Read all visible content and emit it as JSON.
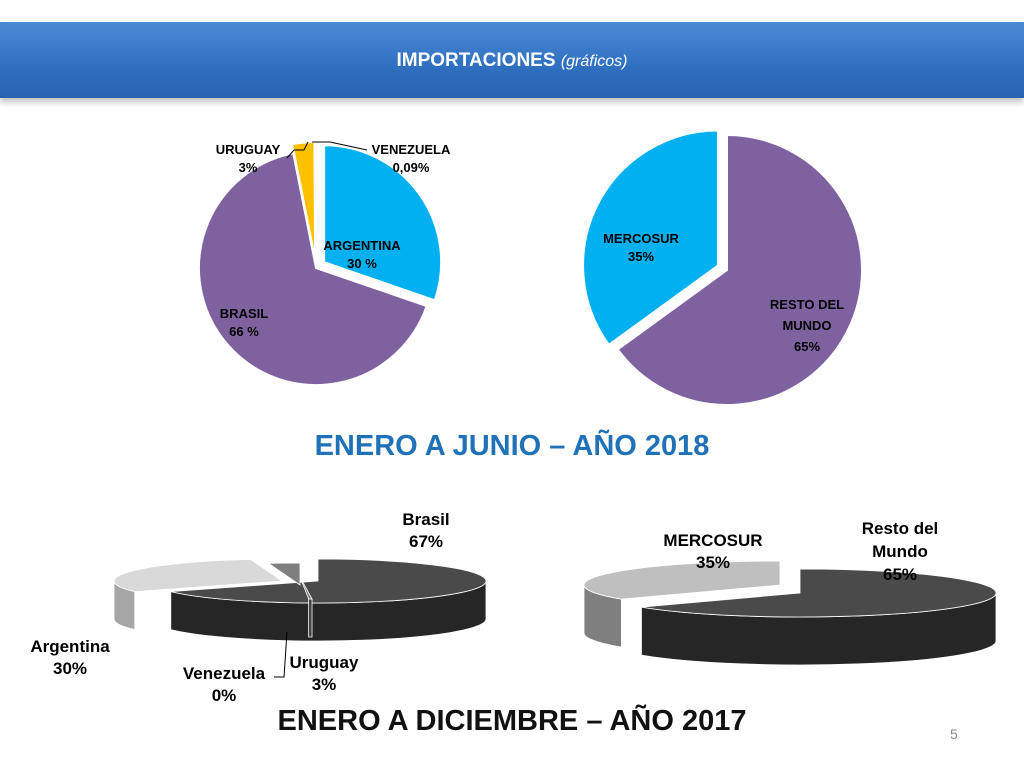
{
  "header": {
    "title": "IMPORTACIONES",
    "subtitle": "(gráficos)"
  },
  "section_2018": {
    "title": "ENERO A JUNIO – AÑO 2018"
  },
  "section_2017": {
    "title": "ENERO A DICIEMBRE – AÑO 2017"
  },
  "page_number": "5",
  "colors": {
    "purple": "#7e62a0",
    "cyan": "#00b0f0",
    "yellow": "#ffc000",
    "dark_gray": "#4a4a4a",
    "mid_gray": "#7f7f7f",
    "light_gray": "#d9d9d9"
  },
  "chart_data": [
    {
      "type": "pie",
      "title": "",
      "period": "ENERO A JUNIO – AÑO 2018",
      "slices": [
        {
          "name": "ARGENTINA",
          "label": "30 %",
          "value": 30
        },
        {
          "name": "BRASIL",
          "label": "66 %",
          "value": 66
        },
        {
          "name": "URUGUAY",
          "label": "3%",
          "value": 3
        },
        {
          "name": "VENEZUELA",
          "label": "0,09%",
          "value": 0.09
        }
      ]
    },
    {
      "type": "pie",
      "title": "",
      "period": "ENERO A JUNIO – AÑO 2018",
      "slices": [
        {
          "name": "MERCOSUR",
          "label": "35%",
          "value": 35
        },
        {
          "name": "RESTO DEL MUNDO",
          "label": "65%",
          "value": 65
        }
      ]
    },
    {
      "type": "pie",
      "title": "",
      "period": "ENERO A DICIEMBRE – AÑO 2017",
      "slices": [
        {
          "name": "Brasil",
          "label": "67%",
          "value": 67
        },
        {
          "name": "Argentina",
          "label": "30%",
          "value": 30
        },
        {
          "name": "Venezuela",
          "label": "0%",
          "value": 0
        },
        {
          "name": "Uruguay",
          "label": "3%",
          "value": 3
        }
      ]
    },
    {
      "type": "pie",
      "title": "",
      "period": "ENERO A DICIEMBRE – AÑO 2017",
      "slices": [
        {
          "name": "MERCOSUR",
          "label": "35%",
          "value": 35
        },
        {
          "name": "Resto del Mundo",
          "label": "65%",
          "value": 65
        }
      ]
    }
  ]
}
